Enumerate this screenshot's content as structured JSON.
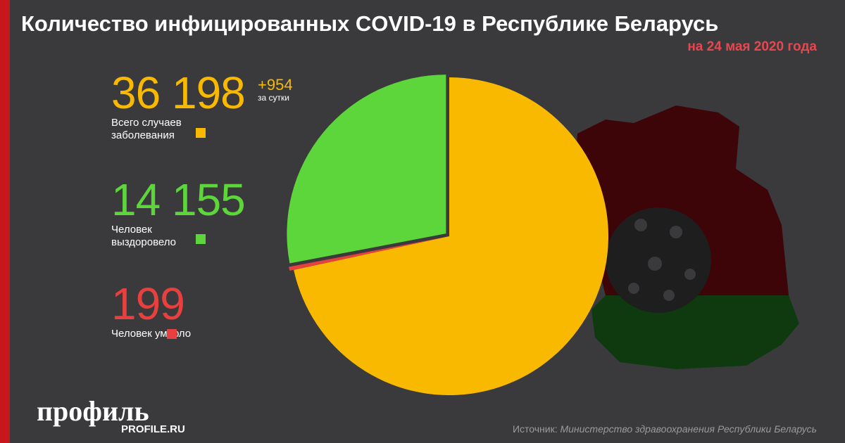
{
  "chart_data": {
    "type": "pie",
    "title": "Количество инфицированных COVID-19 в Республике Беларусь",
    "subtitle": "на 24 мая 2020 года",
    "categories": [
      "Всего случаев заболевания",
      "Человек умерло",
      "Человек выздоровело"
    ],
    "values": [
      36198,
      199,
      14155
    ],
    "value_labels": [
      "36 198",
      "199",
      "14 155"
    ],
    "colors": [
      "#f9b900",
      "#e8403f",
      "#5dd63b"
    ],
    "daily_change": "+954",
    "daily_change_note": "за сутки",
    "start_angle": 0
  },
  "footer": {
    "source_prefix": "Источник:",
    "source": "Министерство здравоохранения Республики Беларусь",
    "logo": "профиль",
    "logo_url": "PROFILE.RU"
  }
}
